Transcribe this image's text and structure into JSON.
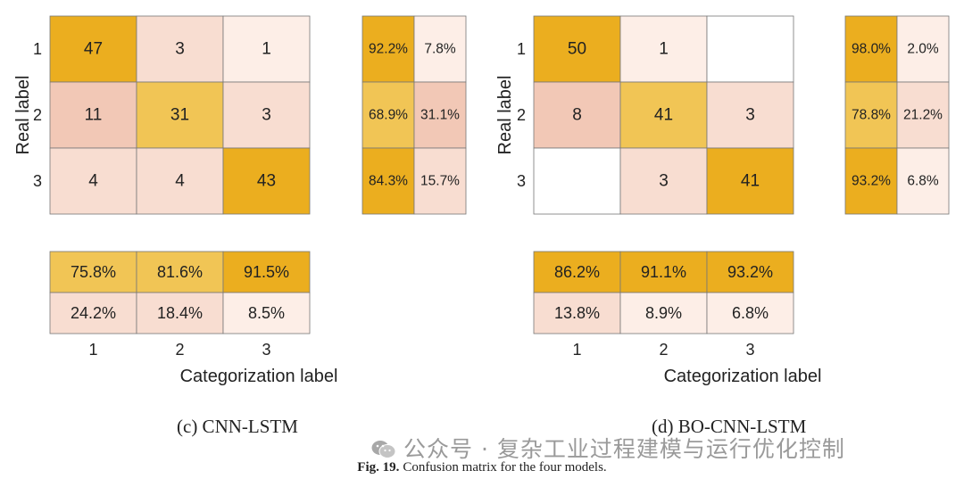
{
  "colors": {
    "high": "#ebae1f",
    "mid": "#f1c555",
    "pinkStrong": "#f2c8b6",
    "pink": "#f8ddd1",
    "pale": "#fdeee7",
    "white": "#ffffff",
    "border": "#777777"
  },
  "chart_data": [
    {
      "type": "heatmap",
      "title": "(c) CNN-LSTM",
      "xlabel": "Categorization label",
      "ylabel": "Real label",
      "row_labels": [
        "1",
        "2",
        "3"
      ],
      "col_labels": [
        "1",
        "2",
        "3"
      ],
      "matrix": [
        [
          47,
          3,
          1
        ],
        [
          11,
          31,
          3
        ],
        [
          4,
          4,
          43
        ]
      ],
      "row_summary": [
        [
          "92.2%",
          "7.8%"
        ],
        [
          "68.9%",
          "31.1%"
        ],
        [
          "84.3%",
          "15.7%"
        ]
      ],
      "col_summary": [
        [
          "75.8%",
          "81.6%",
          "91.5%"
        ],
        [
          "24.2%",
          "18.4%",
          "8.5%"
        ]
      ]
    },
    {
      "type": "heatmap",
      "title": "(d) BO-CNN-LSTM",
      "xlabel": "Categorization label",
      "ylabel": "Real label",
      "row_labels": [
        "1",
        "2",
        "3"
      ],
      "col_labels": [
        "1",
        "2",
        "3"
      ],
      "matrix": [
        [
          50,
          1,
          null
        ],
        [
          8,
          41,
          3
        ],
        [
          null,
          3,
          41
        ]
      ],
      "row_summary": [
        [
          "98.0%",
          "2.0%"
        ],
        [
          "78.8%",
          "21.2%"
        ],
        [
          "93.2%",
          "6.8%"
        ]
      ],
      "col_summary": [
        [
          "86.2%",
          "91.1%",
          "93.2%"
        ],
        [
          "13.8%",
          "8.9%",
          "6.8%"
        ]
      ]
    }
  ],
  "captions": {
    "left": "(c) CNN-LSTM",
    "right": "(d) BO-CNN-LSTM"
  },
  "figure_caption": {
    "label": "Fig. 19.",
    "text": "Confusion matrix for the four models."
  },
  "watermark": {
    "text": "公众号 · 复杂工业过程建模与运行优化控制",
    "icon": "wechat-icon"
  }
}
